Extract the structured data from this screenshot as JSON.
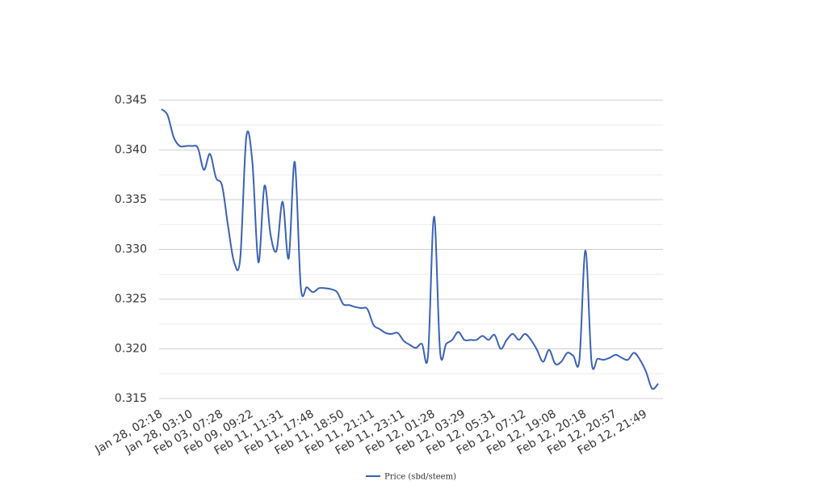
{
  "chart_data": {
    "type": "line",
    "categories": [
      "Jan 28, 02:18",
      null,
      null,
      null,
      null,
      "Jan 28, 03:10",
      null,
      null,
      null,
      null,
      "Feb 03, 07:28",
      null,
      null,
      null,
      null,
      "Feb 09, 09:22",
      null,
      null,
      null,
      null,
      "Feb 11, 11:31",
      null,
      null,
      null,
      null,
      "Feb 11, 17:48",
      null,
      null,
      null,
      null,
      "Feb 11, 18:50",
      null,
      null,
      null,
      null,
      "Feb 11, 21:11",
      null,
      null,
      null,
      null,
      "Feb 11, 23:11",
      null,
      null,
      null,
      null,
      "Feb 12, 01:28",
      null,
      null,
      null,
      null,
      "Feb 12, 03:29",
      null,
      null,
      null,
      null,
      "Feb 12, 05:31",
      null,
      null,
      null,
      null,
      "Feb 12, 07:12",
      null,
      null,
      null,
      null,
      "Feb 12, 19:08",
      null,
      null,
      null,
      null,
      "Feb 12, 20:18",
      null,
      null,
      null,
      null,
      "Feb 12, 20:57",
      null,
      null,
      null,
      null,
      "Feb 12, 21:49",
      null,
      null
    ],
    "series": [
      {
        "name": "Price (sbd/steem)",
        "color": "#3a62b5",
        "values": [
          0.3441,
          0.3435,
          0.3413,
          0.3404,
          0.3404,
          0.3404,
          0.3402,
          0.338,
          0.3396,
          0.3372,
          0.3364,
          0.3323,
          0.3287,
          0.3291,
          0.3413,
          0.3388,
          0.3287,
          0.3364,
          0.3315,
          0.3299,
          0.3348,
          0.3291,
          0.3388,
          0.3262,
          0.3262,
          0.3257,
          0.3261,
          0.3261,
          0.326,
          0.3257,
          0.3245,
          0.3244,
          0.3242,
          0.3241,
          0.324,
          0.3224,
          0.322,
          0.3216,
          0.3215,
          0.3216,
          0.3208,
          0.3204,
          0.3201,
          0.3205,
          0.3193,
          0.3333,
          0.3197,
          0.3205,
          0.3209,
          0.3217,
          0.3209,
          0.3209,
          0.3209,
          0.3213,
          0.3209,
          0.3214,
          0.32,
          0.3209,
          0.3215,
          0.3209,
          0.3215,
          0.3209,
          0.3199,
          0.3187,
          0.3199,
          0.3185,
          0.3187,
          0.3196,
          0.3193,
          0.3189,
          0.3299,
          0.3187,
          0.319,
          0.3189,
          0.3191,
          0.3194,
          0.3191,
          0.3189,
          0.3196,
          0.3189,
          0.3177,
          0.316,
          0.3165
        ]
      }
    ],
    "ylim": [
      0.315,
      0.345
    ],
    "yticks": [
      0.315,
      {
        "value": 0.32,
        "label": "0.320"
      },
      0.325,
      {
        "value": 0.33,
        "label": "0.330"
      },
      0.335,
      {
        "value": 0.34,
        "label": "0.340"
      },
      0.345
    ],
    "minor_yticks": [
      0.3175,
      0.3225,
      0.3275,
      0.3325,
      0.3375,
      0.3425
    ],
    "grid": true,
    "legend": "bottom"
  }
}
